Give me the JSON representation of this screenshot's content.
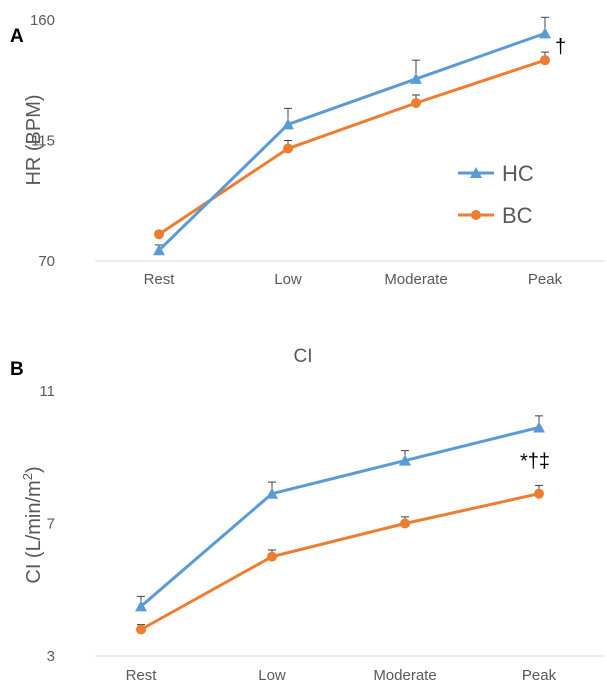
{
  "figure": {
    "label_a": "A",
    "label_b": "B"
  },
  "colors": {
    "HC": "#5B9BD5",
    "BC": "#ED7D31",
    "axis": "#d9d9d9",
    "errorbar": "#404040"
  },
  "chart_data": [
    {
      "type": "line",
      "panel": "A",
      "title": "",
      "xlabel": "",
      "ylabel": "HR (BPM)",
      "categories": [
        "Rest",
        "Low",
        "Moderate",
        "Peak"
      ],
      "ylim": [
        70,
        160
      ],
      "yticks": [
        "70",
        "115",
        "160"
      ],
      "grid": false,
      "legend": "right",
      "series": [
        {
          "name": "HC",
          "marker": "triangle",
          "values": [
            74,
            121,
            138,
            155
          ],
          "error": [
            2,
            6,
            7,
            6
          ]
        },
        {
          "name": "BC",
          "marker": "circle",
          "values": [
            80,
            112,
            129,
            145
          ],
          "error": [
            1,
            3,
            3,
            3
          ]
        }
      ],
      "annotation": {
        "text": "†",
        "category": "Peak"
      }
    },
    {
      "type": "line",
      "panel": "B",
      "title": "CI",
      "xlabel": "",
      "ylabel_main": "CI (L/min/m",
      "ylabel_sup": "2",
      "ylabel_end": ")",
      "categories": [
        "Rest",
        "Low",
        "Moderate",
        "Peak"
      ],
      "ylim": [
        3,
        11
      ],
      "yticks": [
        "3",
        "7",
        "11"
      ],
      "grid": false,
      "series": [
        {
          "name": "HC",
          "marker": "triangle",
          "values": [
            4.5,
            7.9,
            8.9,
            9.9
          ],
          "error": [
            0.3,
            0.35,
            0.3,
            0.35
          ]
        },
        {
          "name": "BC",
          "marker": "circle",
          "values": [
            3.8,
            6.0,
            7.0,
            7.9
          ],
          "error": [
            0.15,
            0.2,
            0.2,
            0.25
          ]
        }
      ],
      "annotation": {
        "text": "*†‡",
        "category": "Peak"
      }
    }
  ]
}
